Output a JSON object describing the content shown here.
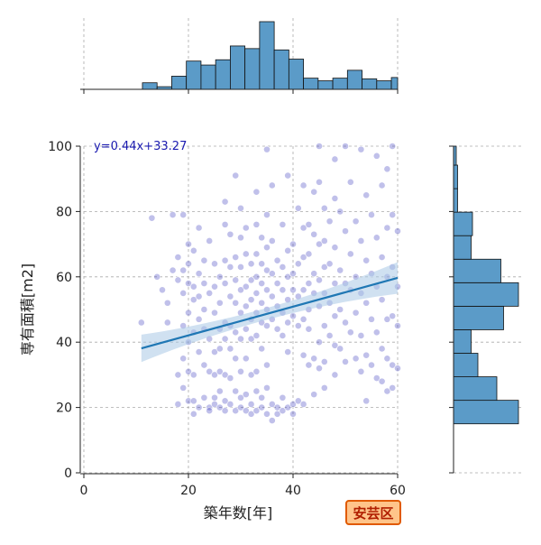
{
  "chart_data": {
    "type": "scatter",
    "title": "",
    "xlabel": "築年数[年]",
    "ylabel": "専有面積[m2]",
    "xlim": [
      0,
      60
    ],
    "ylim": [
      0,
      100
    ],
    "xticks": [
      0,
      20,
      40,
      60
    ],
    "yticks": [
      0,
      20,
      40,
      60,
      80,
      100
    ],
    "grid": true,
    "marker_color": "#3b3bbf",
    "regression": {
      "label": "y=0.44x+33.27",
      "slope": 0.44,
      "intercept": 33.27,
      "x_range": [
        11,
        60
      ],
      "color": "#1f77b4",
      "ci_color": "#a9c8e6"
    },
    "marginal_x_histogram": {
      "bin_start": 0,
      "bin_width": 2.8,
      "counts": [
        0,
        0,
        0,
        0,
        1,
        0.4,
        2,
        4.3,
        3.7,
        4.5,
        6.6,
        6.2,
        10.3,
        6,
        4.6,
        1.7,
        1.3,
        1.7,
        2.9,
        1.6,
        1.3,
        1.8
      ],
      "color": "#5b9bc8"
    },
    "marginal_y_histogram": {
      "bin_start": 15,
      "bin_width": 7.2,
      "counts": [
        4.8,
        3.2,
        1.8,
        1.3,
        3.7,
        4.8,
        3.5,
        1.3,
        1.4,
        0.3,
        0.3,
        0.2
      ],
      "color": "#5b9bc8"
    },
    "points": [
      [
        11,
        46
      ],
      [
        13,
        78
      ],
      [
        14,
        60
      ],
      [
        15,
        56
      ],
      [
        16,
        52
      ],
      [
        16,
        46
      ],
      [
        17,
        62
      ],
      [
        17,
        79
      ],
      [
        18,
        66
      ],
      [
        18,
        59
      ],
      [
        18,
        21
      ],
      [
        18,
        30
      ],
      [
        19,
        79
      ],
      [
        19,
        62
      ],
      [
        19,
        55
      ],
      [
        19,
        45
      ],
      [
        19,
        35
      ],
      [
        19,
        26
      ],
      [
        20,
        70
      ],
      [
        20,
        64
      ],
      [
        20,
        58
      ],
      [
        20,
        49
      ],
      [
        20,
        40
      ],
      [
        20,
        31
      ],
      [
        20,
        22
      ],
      [
        21,
        68
      ],
      [
        21,
        57
      ],
      [
        21,
        53
      ],
      [
        21,
        43
      ],
      [
        21,
        30
      ],
      [
        21,
        22
      ],
      [
        21,
        18
      ],
      [
        22,
        61
      ],
      [
        22,
        54
      ],
      [
        22,
        47
      ],
      [
        22,
        37
      ],
      [
        22,
        20
      ],
      [
        22,
        75
      ],
      [
        23,
        65
      ],
      [
        23,
        58
      ],
      [
        23,
        50
      ],
      [
        23,
        44
      ],
      [
        23,
        33
      ],
      [
        23,
        23
      ],
      [
        24,
        71
      ],
      [
        24,
        55
      ],
      [
        24,
        41
      ],
      [
        24,
        31
      ],
      [
        24,
        20
      ],
      [
        24,
        19
      ],
      [
        25,
        64
      ],
      [
        25,
        57
      ],
      [
        25,
        49
      ],
      [
        25,
        37
      ],
      [
        25,
        30
      ],
      [
        25,
        23
      ],
      [
        25,
        21
      ],
      [
        26,
        60
      ],
      [
        26,
        52
      ],
      [
        26,
        44
      ],
      [
        26,
        38
      ],
      [
        26,
        31
      ],
      [
        26,
        25
      ],
      [
        26,
        20
      ],
      [
        27,
        83
      ],
      [
        27,
        76
      ],
      [
        27,
        65
      ],
      [
        27,
        58
      ],
      [
        27,
        46
      ],
      [
        27,
        41
      ],
      [
        27,
        30
      ],
      [
        27,
        22
      ],
      [
        27,
        19
      ],
      [
        28,
        73
      ],
      [
        28,
        63
      ],
      [
        28,
        54
      ],
      [
        28,
        45
      ],
      [
        28,
        38
      ],
      [
        28,
        29
      ],
      [
        28,
        21
      ],
      [
        29,
        91
      ],
      [
        29,
        66
      ],
      [
        29,
        59
      ],
      [
        29,
        52
      ],
      [
        29,
        43
      ],
      [
        29,
        35
      ],
      [
        29,
        25
      ],
      [
        29,
        19
      ],
      [
        30,
        81
      ],
      [
        30,
        72
      ],
      [
        30,
        63
      ],
      [
        30,
        56
      ],
      [
        30,
        49
      ],
      [
        30,
        41
      ],
      [
        30,
        31
      ],
      [
        30,
        23
      ],
      [
        30,
        20
      ],
      [
        31,
        75
      ],
      [
        31,
        67
      ],
      [
        31,
        57
      ],
      [
        31,
        51
      ],
      [
        31,
        44
      ],
      [
        31,
        35
      ],
      [
        31,
        24
      ],
      [
        31,
        19
      ],
      [
        32,
        64
      ],
      [
        32,
        59
      ],
      [
        32,
        53
      ],
      [
        32,
        47
      ],
      [
        32,
        41
      ],
      [
        32,
        30
      ],
      [
        32,
        21
      ],
      [
        32,
        18
      ],
      [
        33,
        86
      ],
      [
        33,
        76
      ],
      [
        33,
        67
      ],
      [
        33,
        60
      ],
      [
        33,
        55
      ],
      [
        33,
        49
      ],
      [
        33,
        42
      ],
      [
        33,
        31
      ],
      [
        33,
        25
      ],
      [
        33,
        19
      ],
      [
        34,
        72
      ],
      [
        34,
        64
      ],
      [
        34,
        58
      ],
      [
        34,
        52
      ],
      [
        34,
        46
      ],
      [
        34,
        38
      ],
      [
        34,
        23
      ],
      [
        34,
        20
      ],
      [
        35,
        99
      ],
      [
        35,
        79
      ],
      [
        35,
        69
      ],
      [
        35,
        62
      ],
      [
        35,
        56
      ],
      [
        35,
        50
      ],
      [
        35,
        45
      ],
      [
        35,
        33
      ],
      [
        35,
        26
      ],
      [
        35,
        18
      ],
      [
        36,
        88
      ],
      [
        36,
        71
      ],
      [
        36,
        61
      ],
      [
        36,
        54
      ],
      [
        36,
        47
      ],
      [
        36,
        21
      ],
      [
        36,
        16
      ],
      [
        37,
        65
      ],
      [
        37,
        58
      ],
      [
        37,
        51
      ],
      [
        37,
        44
      ],
      [
        37,
        20
      ],
      [
        37,
        18
      ],
      [
        38,
        76
      ],
      [
        38,
        63
      ],
      [
        38,
        56
      ],
      [
        38,
        49
      ],
      [
        38,
        42
      ],
      [
        38,
        23
      ],
      [
        38,
        19
      ],
      [
        39,
        91
      ],
      [
        39,
        68
      ],
      [
        39,
        60
      ],
      [
        39,
        53
      ],
      [
        39,
        46
      ],
      [
        39,
        37
      ],
      [
        39,
        20
      ],
      [
        40,
        70
      ],
      [
        40,
        61
      ],
      [
        40,
        56
      ],
      [
        40,
        48
      ],
      [
        40,
        21
      ],
      [
        40,
        18
      ],
      [
        41,
        81
      ],
      [
        41,
        64
      ],
      [
        41,
        54
      ],
      [
        41,
        45
      ],
      [
        41,
        22
      ],
      [
        42,
        88
      ],
      [
        42,
        75
      ],
      [
        42,
        66
      ],
      [
        42,
        56
      ],
      [
        42,
        47
      ],
      [
        42,
        36
      ],
      [
        42,
        21
      ],
      [
        43,
        76
      ],
      [
        43,
        67
      ],
      [
        43,
        58
      ],
      [
        43,
        50
      ],
      [
        43,
        44
      ],
      [
        43,
        33
      ],
      [
        44,
        86
      ],
      [
        44,
        73
      ],
      [
        44,
        61
      ],
      [
        44,
        55
      ],
      [
        44,
        35
      ],
      [
        44,
        24
      ],
      [
        45,
        100
      ],
      [
        45,
        89
      ],
      [
        45,
        70
      ],
      [
        45,
        59
      ],
      [
        45,
        51
      ],
      [
        45,
        40
      ],
      [
        45,
        32
      ],
      [
        46,
        81
      ],
      [
        46,
        71
      ],
      [
        46,
        63
      ],
      [
        46,
        55
      ],
      [
        46,
        45
      ],
      [
        46,
        34
      ],
      [
        46,
        26
      ],
      [
        47,
        77
      ],
      [
        47,
        64
      ],
      [
        47,
        52
      ],
      [
        47,
        42
      ],
      [
        48,
        96
      ],
      [
        48,
        84
      ],
      [
        48,
        69
      ],
      [
        48,
        58
      ],
      [
        48,
        48
      ],
      [
        48,
        39
      ],
      [
        48,
        30
      ],
      [
        49,
        80
      ],
      [
        49,
        62
      ],
      [
        49,
        50
      ],
      [
        49,
        38
      ],
      [
        50,
        100
      ],
      [
        50,
        74
      ],
      [
        50,
        58
      ],
      [
        50,
        46
      ],
      [
        50,
        34
      ],
      [
        51,
        89
      ],
      [
        51,
        67
      ],
      [
        51,
        56
      ],
      [
        51,
        43
      ],
      [
        52,
        77
      ],
      [
        52,
        60
      ],
      [
        52,
        49
      ],
      [
        52,
        35
      ],
      [
        53,
        99
      ],
      [
        53,
        71
      ],
      [
        53,
        55
      ],
      [
        53,
        42
      ],
      [
        53,
        31
      ],
      [
        54,
        85
      ],
      [
        54,
        65
      ],
      [
        54,
        52
      ],
      [
        54,
        36
      ],
      [
        54,
        22
      ],
      [
        55,
        79
      ],
      [
        55,
        61
      ],
      [
        55,
        47
      ],
      [
        55,
        33
      ],
      [
        56,
        97
      ],
      [
        56,
        72
      ],
      [
        56,
        57
      ],
      [
        56,
        43
      ],
      [
        56,
        29
      ],
      [
        57,
        88
      ],
      [
        57,
        66
      ],
      [
        57,
        53
      ],
      [
        57,
        38
      ],
      [
        57,
        28
      ],
      [
        58,
        93
      ],
      [
        58,
        75
      ],
      [
        58,
        60
      ],
      [
        58,
        47
      ],
      [
        58,
        35
      ],
      [
        58,
        25
      ],
      [
        59,
        100
      ],
      [
        59,
        79
      ],
      [
        59,
        63
      ],
      [
        59,
        48
      ],
      [
        59,
        33
      ],
      [
        59,
        26
      ],
      [
        60,
        74
      ],
      [
        60,
        57
      ],
      [
        60,
        45
      ],
      [
        60,
        32
      ]
    ]
  },
  "badge": {
    "text": "安芸区",
    "bg_color": "#ffc48a",
    "border_color": "#e05a00"
  }
}
